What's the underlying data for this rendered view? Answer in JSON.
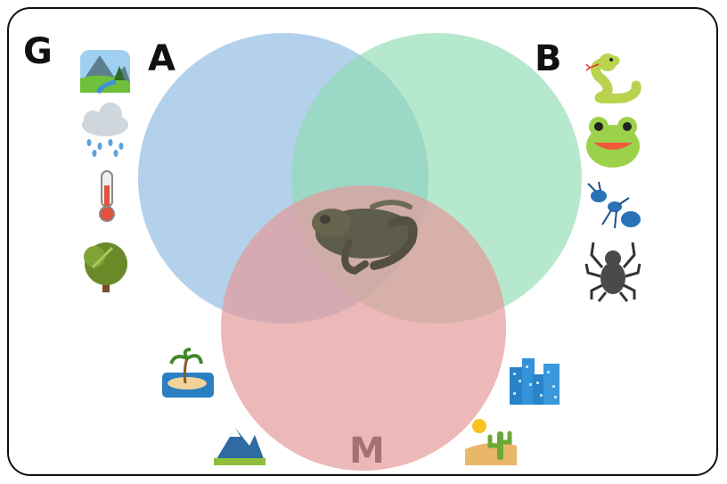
{
  "labels": {
    "outer": "G",
    "set_a": "A",
    "set_b": "B",
    "set_m": "M"
  },
  "colors": {
    "set_a": "#8bb8e0",
    "set_b": "#8fdcb2",
    "set_m": "#e59a9a",
    "frame_border": "#111111"
  },
  "center_image": "frog-icon",
  "icons": {
    "left_column": [
      "landscape-icon",
      "rain-cloud-icon",
      "thermometer-icon",
      "tree-icon"
    ],
    "right_column": [
      "snake-icon",
      "frog-face-icon",
      "ant-icon",
      "spider-icon"
    ],
    "bottom": [
      "island-icon",
      "mountain-icon",
      "city-icon",
      "desert-icon"
    ]
  }
}
